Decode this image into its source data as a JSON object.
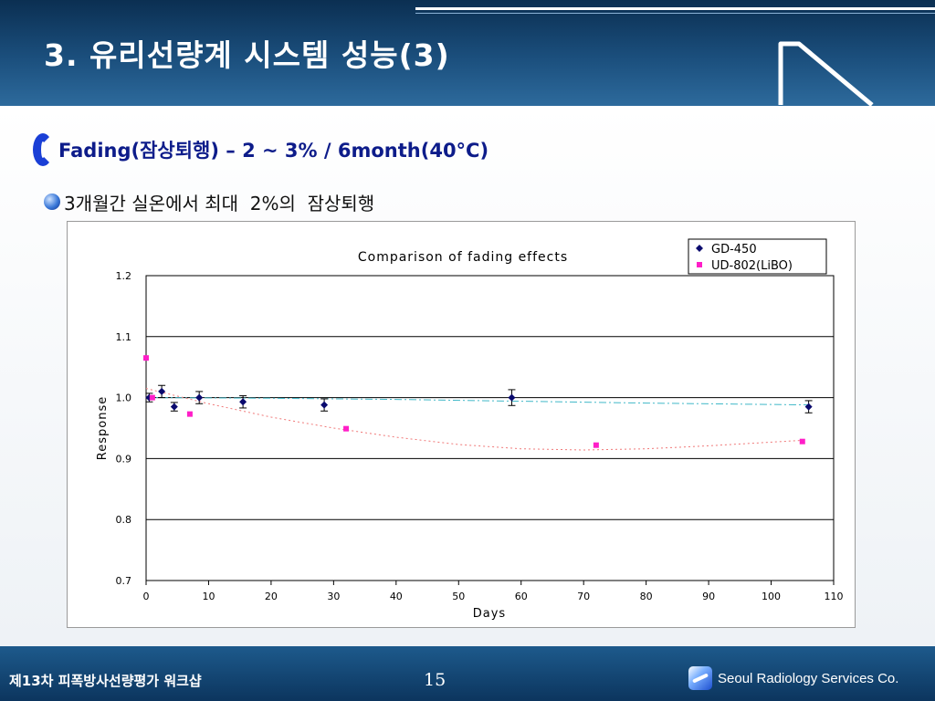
{
  "slide": {
    "title": "3. 유리선량계 시스템 성능(3)",
    "bullet1": "Fading(잠상퇴행) – 2 ~ 3% / 6month(40°C)",
    "bullet2": "3개월간 실온에서 최대  2%의  잠상퇴행"
  },
  "footer": {
    "left_text": "제13차 피폭방사선량평가 워크샵",
    "page_number": "15",
    "company": "Seoul Radiology Services Co."
  },
  "chart_data": {
    "type": "scatter",
    "title": "Comparison of fading effects",
    "xlabel": "Days",
    "ylabel": "Response",
    "xlim": [
      0,
      110
    ],
    "ylim": [
      0.7,
      1.2
    ],
    "xticks": [
      0,
      10,
      20,
      30,
      40,
      50,
      60,
      70,
      80,
      90,
      100,
      110
    ],
    "yticks": [
      0.7,
      0.8,
      0.9,
      1.0,
      1.1,
      1.2
    ],
    "ytick_labels": [
      "0.7",
      "0.8",
      "0.9",
      "1.0",
      "1.1",
      "1.2"
    ],
    "grid": "horizontal",
    "legend_position": "top-right",
    "series": [
      {
        "name": "GD-450",
        "marker": "diamond",
        "color": "#0a0a6e",
        "trend_color": "#40b8c8",
        "x": [
          0.5,
          2.5,
          4.5,
          8.5,
          15.5,
          28.5,
          58.5,
          106
        ],
        "y": [
          1.0,
          1.01,
          0.985,
          1.0,
          0.993,
          0.988,
          1.0,
          0.985
        ],
        "error": [
          0.007,
          0.01,
          0.007,
          0.01,
          0.01,
          0.01,
          0.013,
          0.01
        ],
        "trend": {
          "x": [
            0,
            20,
            40,
            60,
            80,
            106
          ],
          "y": [
            1.0,
            0.999,
            0.997,
            0.994,
            0.991,
            0.988
          ]
        }
      },
      {
        "name": "UD-802(LiBO)",
        "marker": "square",
        "color": "#ff1ec8",
        "trend_color": "#f07878",
        "x": [
          0,
          1,
          7,
          32,
          72,
          105
        ],
        "y": [
          1.065,
          1.0,
          0.973,
          0.949,
          0.922,
          0.928
        ],
        "trend": {
          "x": [
            0,
            10,
            20,
            30,
            40,
            50,
            60,
            70,
            80,
            90,
            100,
            105
          ],
          "y": [
            1.015,
            0.99,
            0.968,
            0.95,
            0.935,
            0.923,
            0.916,
            0.914,
            0.916,
            0.921,
            0.927,
            0.93
          ]
        }
      }
    ]
  }
}
